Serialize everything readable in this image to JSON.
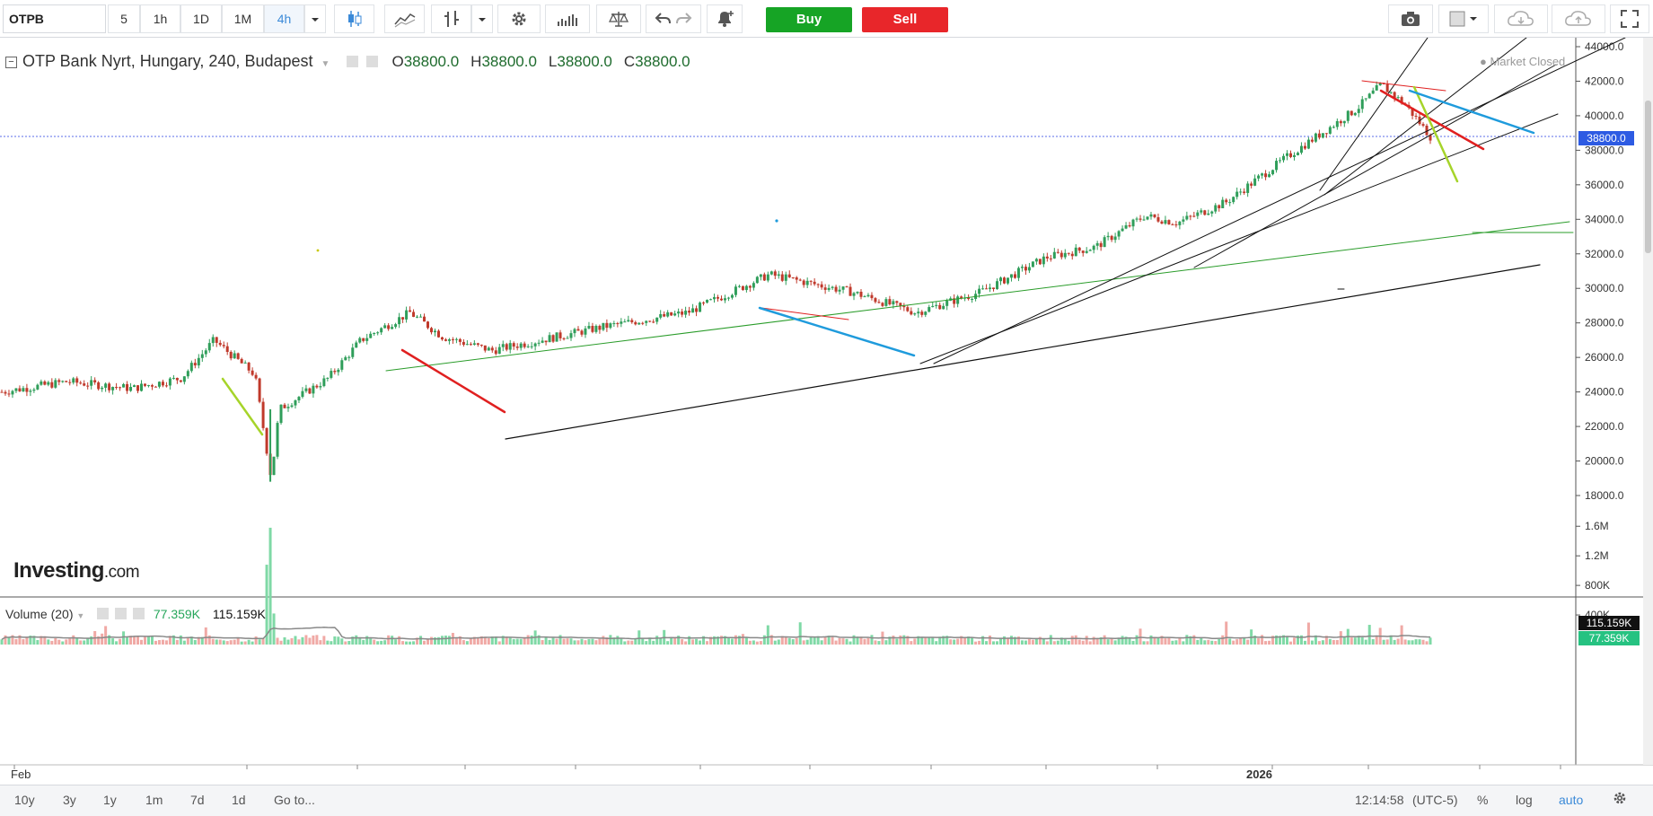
{
  "toolbar": {
    "symbol": "OTPB",
    "intervals": [
      "5",
      "1h",
      "1D",
      "1M",
      "4h"
    ],
    "active_interval": "4h",
    "buy_label": "Buy",
    "sell_label": "Sell"
  },
  "legend": {
    "title": "OTP Bank Nyrt, Hungary, 240, Budapest",
    "open_label": "O",
    "open": "38800.0",
    "high_label": "H",
    "high": "38800.0",
    "low_label": "L",
    "low": "38800.0",
    "close_label": "C",
    "close": "38800.0",
    "status": "Market Closed"
  },
  "volume_legend": {
    "label": "Volume (20)",
    "value1": "77.359K",
    "value2": "115.159K"
  },
  "price_axis": {
    "ticks": [
      "44000.0",
      "42000.0",
      "40000.0",
      "38000.0",
      "36000.0",
      "34000.0",
      "32000.0",
      "30000.0",
      "28000.0",
      "26000.0",
      "24000.0",
      "22000.0",
      "20000.0",
      "18000.0"
    ],
    "current_price": "38800.0"
  },
  "volume_axis": {
    "ticks": [
      "1.6M",
      "1.2M",
      "800K",
      "400K"
    ],
    "tag1": "115.159K",
    "tag2": "77.359K"
  },
  "time_axis": {
    "labels": [
      "Feb",
      "2026"
    ]
  },
  "watermark": {
    "brand": "Investing",
    "suffix": ".com"
  },
  "bottom_bar": {
    "ranges": [
      "10y",
      "3y",
      "1y",
      "1m",
      "7d",
      "1d"
    ],
    "goto": "Go to...",
    "time": "12:14:58",
    "timezone": "(UTC-5)",
    "pct": "%",
    "log": "log",
    "auto": "auto"
  },
  "colors": {
    "up": "#2f9e5a",
    "down": "#c0392b",
    "buy": "#16a425",
    "sell": "#e8262a",
    "price_tag": "#2d5be3",
    "vol_tag": "#26c281"
  },
  "chart_data": {
    "type": "candlestick",
    "title": "OTP Bank Nyrt, Hungary, 240, Budapest",
    "ylim": [
      18000,
      44000
    ],
    "last_price": 38800,
    "trend": [
      {
        "t": 0.0,
        "v": 24000
      },
      {
        "t": 0.04,
        "v": 24600
      },
      {
        "t": 0.08,
        "v": 24200
      },
      {
        "t": 0.11,
        "v": 24800
      },
      {
        "t": 0.13,
        "v": 27000
      },
      {
        "t": 0.155,
        "v": 25000
      },
      {
        "t": 0.165,
        "v": 19000
      },
      {
        "t": 0.17,
        "v": 23000
      },
      {
        "t": 0.2,
        "v": 24800
      },
      {
        "t": 0.22,
        "v": 27000
      },
      {
        "t": 0.25,
        "v": 28600
      },
      {
        "t": 0.27,
        "v": 27200
      },
      {
        "t": 0.3,
        "v": 26400
      },
      {
        "t": 0.33,
        "v": 27000
      },
      {
        "t": 0.37,
        "v": 27800
      },
      {
        "t": 0.42,
        "v": 28600
      },
      {
        "t": 0.47,
        "v": 30800
      },
      {
        "t": 0.52,
        "v": 29800
      },
      {
        "t": 0.56,
        "v": 28600
      },
      {
        "t": 0.6,
        "v": 29800
      },
      {
        "t": 0.64,
        "v": 31800
      },
      {
        "t": 0.67,
        "v": 32400
      },
      {
        "t": 0.7,
        "v": 34200
      },
      {
        "t": 0.72,
        "v": 33800
      },
      {
        "t": 0.75,
        "v": 35000
      },
      {
        "t": 0.79,
        "v": 37800
      },
      {
        "t": 0.83,
        "v": 40400
      },
      {
        "t": 0.845,
        "v": 41800
      },
      {
        "t": 0.86,
        "v": 40600
      },
      {
        "t": 0.875,
        "v": 38800
      }
    ],
    "volume": {
      "sma_period": 20,
      "last_volume": 77359,
      "last_sma": 115159,
      "ylim": [
        0,
        1700000
      ],
      "spike": 1580000
    }
  }
}
